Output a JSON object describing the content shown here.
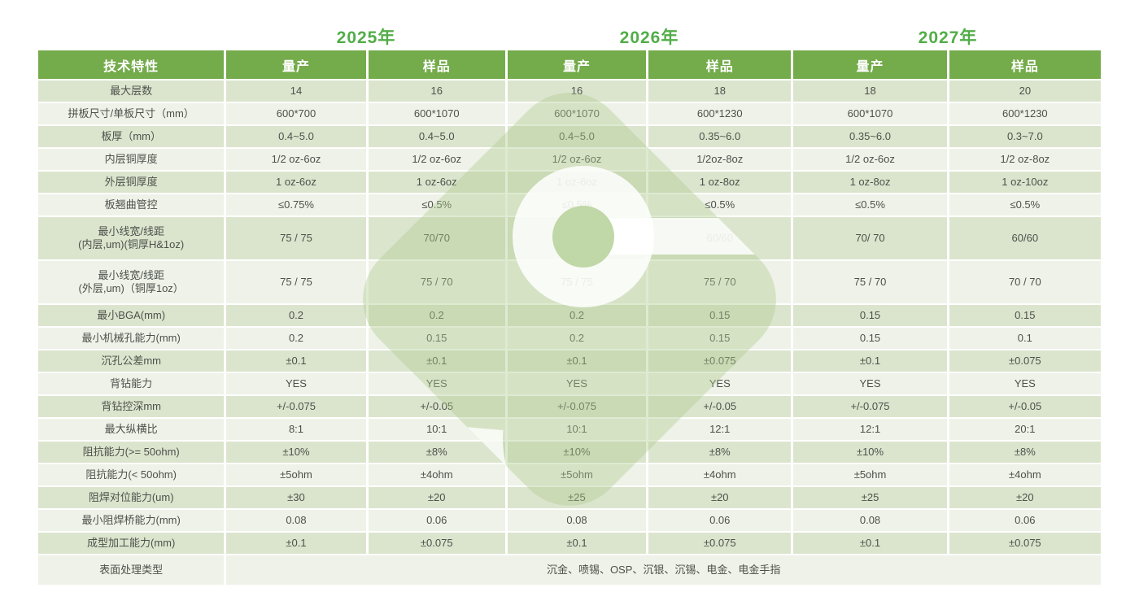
{
  "years": [
    {
      "label": "2025年"
    },
    {
      "label": "2026年"
    },
    {
      "label": "2027年"
    }
  ],
  "table": {
    "col_headers": [
      "技术特性",
      "量产",
      "样品",
      "量产",
      "样品",
      "量产",
      "样品"
    ],
    "rows": [
      {
        "label": "最大层数",
        "values": [
          "14",
          "16",
          "16",
          "18",
          "18",
          "20"
        ]
      },
      {
        "label": "拼板尺寸/单板尺寸（mm）",
        "values": [
          "600*700",
          "600*1070",
          "600*1070",
          "600*1230",
          "600*1070",
          "600*1230"
        ]
      },
      {
        "label": "板厚（mm）",
        "values": [
          "0.4~5.0",
          "0.4~5.0",
          "0.4~5.0",
          "0.35~6.0",
          "0.35~6.0",
          "0.3~7.0"
        ]
      },
      {
        "label": "内层铜厚度",
        "values": [
          "1/2 oz-6oz",
          "1/2 oz-6oz",
          "1/2 oz-6oz",
          "1/2oz-8oz",
          "1/2 oz-6oz",
          "1/2 oz-8oz"
        ]
      },
      {
        "label": "外层铜厚度",
        "values": [
          "1 oz-6oz",
          "1 oz-6oz",
          "1 oz-6oz",
          "1 oz-8oz",
          "1 oz-8oz",
          "1 oz-10oz"
        ]
      },
      {
        "label": "板翘曲管控",
        "values": [
          "≤0.75%",
          "≤0.5%",
          "≤0.5%",
          "≤0.5%",
          "≤0.5%",
          "≤0.5%"
        ]
      },
      {
        "label": "最小线宽/线距\n(内层,um)(铜厚H&1oz)",
        "tall": true,
        "values": [
          "75 / 75",
          "70/70",
          "70 / 70",
          "60/60",
          "70/ 70",
          "60/60"
        ]
      },
      {
        "label": "最小线宽/线距\n(外层,um)（铜厚1oz）",
        "tall": true,
        "values": [
          "75 / 75",
          "75 / 70",
          "75 / 75",
          "75 / 70",
          "75 / 70",
          "70 / 70"
        ]
      },
      {
        "label": "最小BGA(mm)",
        "values": [
          "0.2",
          "0.2",
          "0.2",
          "0.15",
          "0.15",
          "0.15"
        ]
      },
      {
        "label": "最小机械孔能力(mm)",
        "values": [
          "0.2",
          "0.15",
          "0.2",
          "0.15",
          "0.15",
          "0.1"
        ]
      },
      {
        "label": "沉孔公差mm",
        "values": [
          "±0.1",
          "±0.1",
          "±0.1",
          "±0.075",
          "±0.1",
          "±0.075"
        ]
      },
      {
        "label": "背钻能力",
        "values": [
          "YES",
          "YES",
          "YES",
          "YES",
          "YES",
          "YES"
        ]
      },
      {
        "label": "背钻控深mm",
        "values": [
          "+/-0.075",
          "+/-0.05",
          "+/-0.075",
          "+/-0.05",
          "+/-0.075",
          "+/-0.05"
        ]
      },
      {
        "label": "最大纵横比",
        "values": [
          "8:1",
          "10:1",
          "10:1",
          "12:1",
          "12:1",
          "20:1"
        ]
      },
      {
        "label": "阻抗能力(>= 50ohm)",
        "values": [
          "±10%",
          "±8%",
          "±10%",
          "±8%",
          "±10%",
          "±8%"
        ]
      },
      {
        "label": "阻抗能力(< 50ohm)",
        "values": [
          "±5ohm",
          "±4ohm",
          "±5ohm",
          "±4ohm",
          "±5ohm",
          "±4ohm"
        ]
      },
      {
        "label": "阻焊对位能力(um)",
        "values": [
          "±30",
          "±20",
          "±25",
          "±20",
          "±25",
          "±20"
        ]
      },
      {
        "label": "最小阻焊桥能力(mm)",
        "values": [
          "0.08",
          "0.06",
          "0.08",
          "0.06",
          "0.08",
          "0.06"
        ]
      },
      {
        "label": "成型加工能力(mm)",
        "values": [
          "±0.1",
          "±0.075",
          "±0.1",
          "±0.075",
          "±0.1",
          "±0.075"
        ]
      },
      {
        "label": "表面处理类型",
        "last": true,
        "span_value": "沉金、喷锡、OSP、沉银、沉锡、电金、电金手指"
      }
    ]
  },
  "colors": {
    "header_green": "#74ab4b",
    "year_green": "#52ad48",
    "row_odd": "#dbe5cd",
    "row_even": "#eef2e8",
    "watermark_green": "#aecb8e"
  }
}
